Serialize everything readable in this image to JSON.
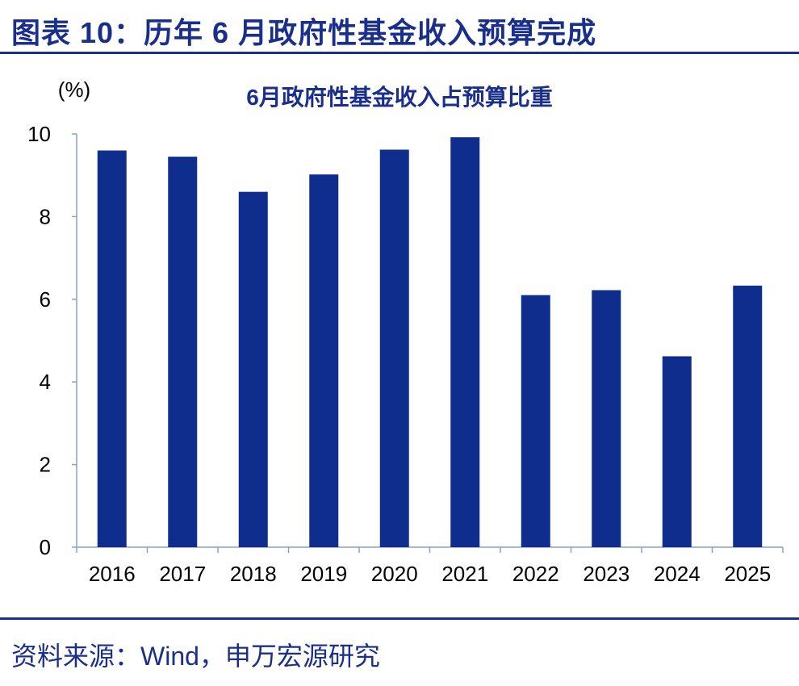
{
  "figure": {
    "title": "图表 10：历年 6 月政府性基金收入预算完成",
    "source": "资料来源：Wind，申万宏源研究"
  },
  "colors": {
    "accent": "#1a2f8c",
    "bar": "#0f2d8c"
  },
  "chart_data": {
    "type": "bar",
    "title": "6月政府性基金收入占预算比重",
    "unit_label": "(%)",
    "xlabel": "",
    "ylabel": "",
    "categories": [
      "2016",
      "2017",
      "2018",
      "2019",
      "2020",
      "2021",
      "2022",
      "2023",
      "2024",
      "2025"
    ],
    "values": [
      9.6,
      9.45,
      8.6,
      9.02,
      9.62,
      9.92,
      6.1,
      6.22,
      4.62,
      6.33
    ],
    "ylim": [
      0,
      10
    ],
    "yticks": [
      "0",
      "2",
      "4",
      "6",
      "8",
      "10"
    ],
    "grid": false,
    "legend": "none"
  }
}
